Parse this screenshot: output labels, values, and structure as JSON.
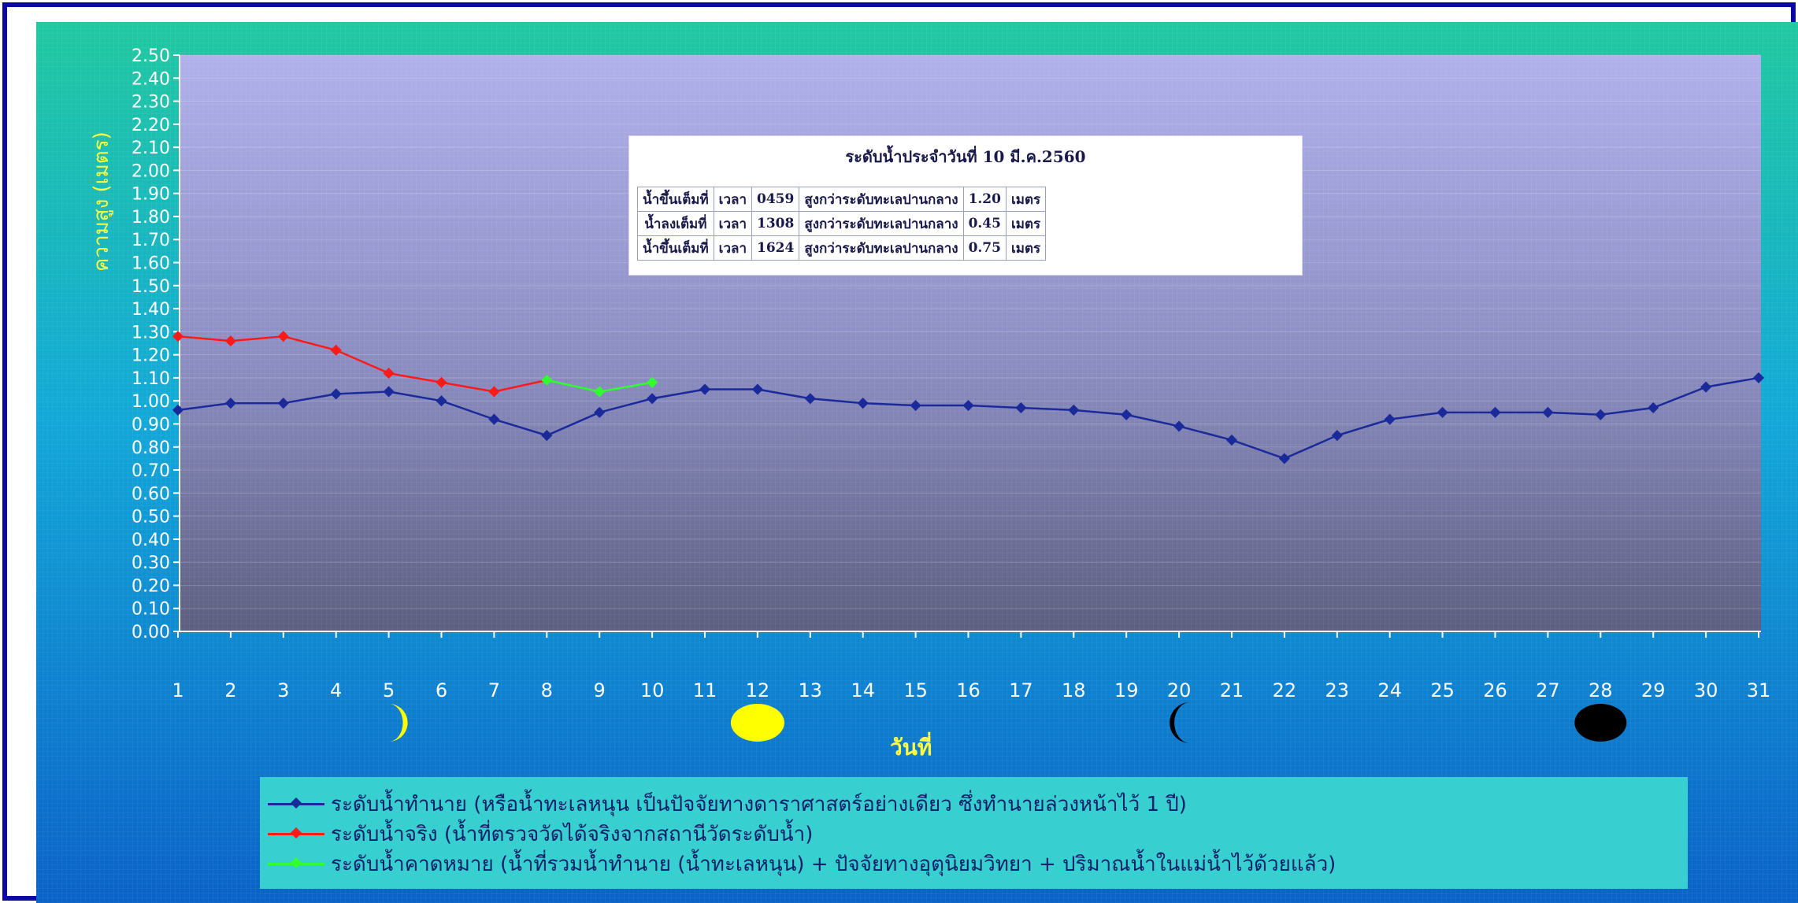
{
  "info_box": {
    "title": "ระดับน้ำประจำวันที่ 10 มี.ค.2560",
    "rows": [
      [
        "น้ำขึ้นเต็มที่",
        "เวลา",
        "0459",
        "สูงกว่าระดับทะเลปานกลาง",
        "1.20",
        "เมตร"
      ],
      [
        "น้ำลงเต็มที่",
        "เวลา",
        "1308",
        "สูงกว่าระดับทะเลปานกลาง",
        "0.45",
        "เมตร"
      ],
      [
        "น้ำขึ้นเต็มที่",
        "เวลา",
        "1624",
        "สูงกว่าระดับทะเลปานกลาง",
        "0.75",
        "เมตร"
      ]
    ]
  },
  "legend": [
    {
      "label": "ระดับน้ำทำนาย (หรือน้ำทะเลหนุน เป็นปัจจัยทางดาราศาสตร์อย่างเดียว ซึ่งทำนายล่วงหน้าไว้ 1 ปี)",
      "color": "#1a2a9a"
    },
    {
      "label": "ระดับน้ำจริง (น้ำที่ตรวจวัดได้จริงจากสถานีวัดระดับน้ำ)",
      "color": "#ff1a1a"
    },
    {
      "label": "ระดับน้ำคาดหมาย (น้ำที่รวมน้ำทำนาย (น้ำทะเลหนุน) + ปัจจัยทางอุตุนิยมวิทยา + ปริมาณน้ำในแม่น้ำไว้ด้วยแล้ว)",
      "color": "#30ff30"
    }
  ],
  "moon_phases": [
    {
      "day": 5,
      "icon": "crescent-moon-icon",
      "color": "#ffff00"
    },
    {
      "day": 12,
      "icon": "full-moon-icon",
      "color": "#ffff00"
    },
    {
      "day": 20,
      "icon": "waning-crescent-moon-icon",
      "color": "#000000"
    },
    {
      "day": 28,
      "icon": "new-moon-icon",
      "color": "#000000"
    }
  ],
  "chart_data": {
    "type": "line",
    "xlabel": "วันที่",
    "ylabel": "ความสูง (เมตร)",
    "x": [
      1,
      2,
      3,
      4,
      5,
      6,
      7,
      8,
      9,
      10,
      11,
      12,
      13,
      14,
      15,
      16,
      17,
      18,
      19,
      20,
      21,
      22,
      23,
      24,
      25,
      26,
      27,
      28,
      29,
      30,
      31
    ],
    "ylim": [
      0,
      2.5
    ],
    "yticks": [
      "0.00",
      "0.10",
      "0.20",
      "0.30",
      "0.40",
      "0.50",
      "0.60",
      "0.70",
      "0.80",
      "0.90",
      "1.00",
      "1.10",
      "1.20",
      "1.30",
      "1.40",
      "1.50",
      "1.60",
      "1.70",
      "1.80",
      "1.90",
      "2.00",
      "2.10",
      "2.20",
      "2.30",
      "2.40",
      "2.50"
    ],
    "grid": true,
    "series": [
      {
        "name": "ระดับน้ำทำนาย",
        "color": "#1a2a9a",
        "x": [
          1,
          2,
          3,
          4,
          5,
          6,
          7,
          8,
          9,
          10,
          11,
          12,
          13,
          14,
          15,
          16,
          17,
          18,
          19,
          20,
          21,
          22,
          23,
          24,
          25,
          26,
          27,
          28,
          29,
          30,
          31
        ],
        "values": [
          0.96,
          0.99,
          0.99,
          1.03,
          1.04,
          1.0,
          0.92,
          0.85,
          0.95,
          1.01,
          1.05,
          1.05,
          1.01,
          0.99,
          0.98,
          0.98,
          0.97,
          0.96,
          0.94,
          0.89,
          0.83,
          0.75,
          0.85,
          0.92,
          0.95,
          0.95,
          0.95,
          0.94,
          0.97,
          1.06,
          1.1
        ]
      },
      {
        "name": "ระดับน้ำจริง",
        "color": "#ff1a1a",
        "x": [
          1,
          2,
          3,
          4,
          5,
          6,
          7,
          8
        ],
        "values": [
          1.28,
          1.26,
          1.28,
          1.22,
          1.12,
          1.08,
          1.04,
          1.09
        ]
      },
      {
        "name": "ระดับน้ำคาดหมาย",
        "color": "#30ff30",
        "x": [
          8,
          9,
          10
        ],
        "values": [
          1.09,
          1.04,
          1.08
        ]
      }
    ]
  }
}
